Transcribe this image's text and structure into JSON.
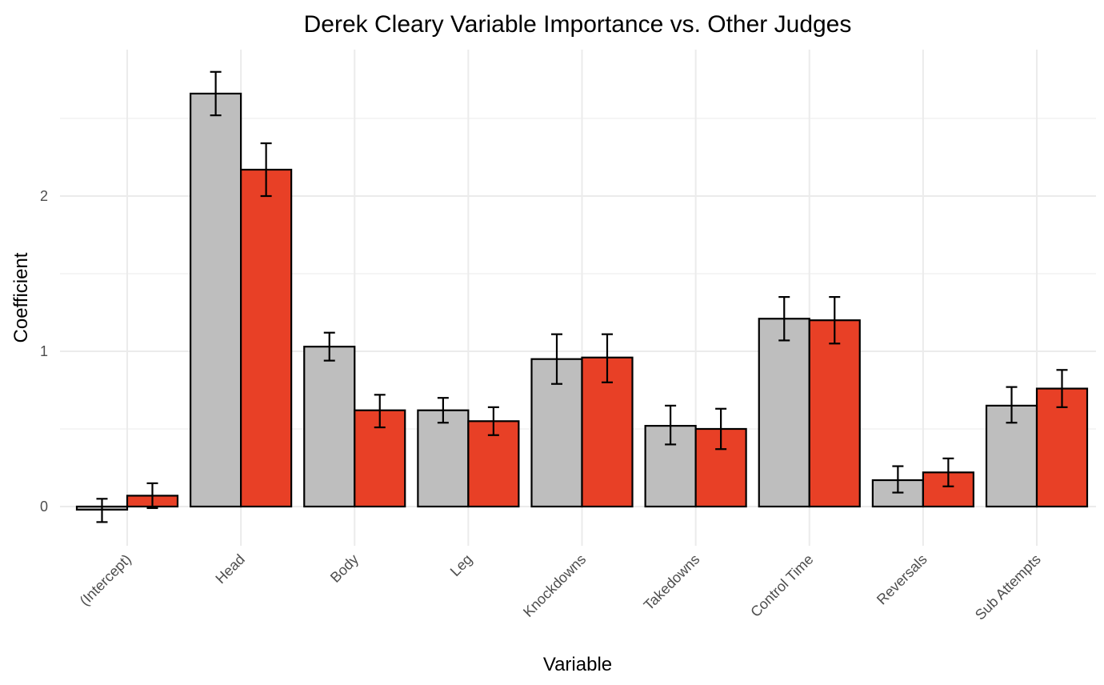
{
  "chart_data": {
    "type": "bar",
    "title": "Derek Cleary Variable Importance vs. Other Judges",
    "xlabel": "Variable",
    "ylabel": "Coefficient",
    "categories": [
      "(Intercept)",
      "Head",
      "Body",
      "Leg",
      "Knockdowns",
      "Takedowns",
      "Control Time",
      "Reversals",
      "Sub Attempts"
    ],
    "series": [
      {
        "color": "#bebebe",
        "values": [
          -0.02,
          2.66,
          1.03,
          0.62,
          0.95,
          0.52,
          1.21,
          0.17,
          0.65
        ],
        "error_low": [
          -0.1,
          2.52,
          0.94,
          0.54,
          0.79,
          0.4,
          1.07,
          0.09,
          0.54
        ],
        "error_high": [
          0.05,
          2.8,
          1.12,
          0.7,
          1.11,
          0.65,
          1.35,
          0.26,
          0.77
        ]
      },
      {
        "color": "#e84026",
        "values": [
          0.07,
          2.17,
          0.62,
          0.55,
          0.96,
          0.5,
          1.2,
          0.22,
          0.76
        ],
        "error_low": [
          -0.01,
          2.0,
          0.51,
          0.46,
          0.8,
          0.37,
          1.05,
          0.13,
          0.64
        ],
        "error_high": [
          0.15,
          2.34,
          0.72,
          0.64,
          1.11,
          0.63,
          1.35,
          0.31,
          0.88
        ]
      }
    ],
    "yticks": [
      0,
      1,
      2
    ],
    "ylim": [
      -0.2,
      2.9
    ],
    "grid": true
  }
}
